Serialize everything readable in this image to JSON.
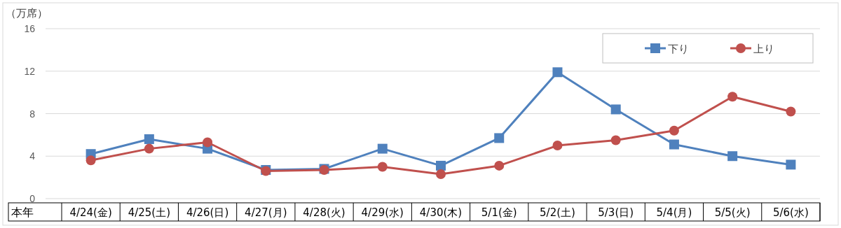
{
  "chart_data": {
    "type": "line",
    "ylabel": "（万席）",
    "categories": [
      "4/24(金)",
      "4/25(土)",
      "4/26(日)",
      "4/27(月)",
      "4/28(火)",
      "4/29(水)",
      "4/30(木)",
      "5/1(金)",
      "5/2(土)",
      "5/3(日)",
      "5/4(月)",
      "5/5(火)",
      "5/6(水)"
    ],
    "series": [
      {
        "name": "下り",
        "color": "#4f81bd",
        "marker": "square",
        "values": [
          4.2,
          5.6,
          4.7,
          2.7,
          2.8,
          4.7,
          3.1,
          5.7,
          11.9,
          8.4,
          5.1,
          4.0,
          3.2
        ]
      },
      {
        "name": "上り",
        "color": "#c0504d",
        "marker": "circle",
        "values": [
          3.6,
          4.7,
          5.3,
          2.6,
          2.7,
          3.0,
          2.3,
          3.1,
          5.0,
          5.5,
          6.4,
          9.6,
          8.2
        ]
      }
    ],
    "ylim": [
      0,
      16
    ],
    "yticks": [
      0,
      4,
      8,
      12,
      16
    ],
    "grid": "y",
    "legend": "top right",
    "line_style": "solid",
    "annotations": [
      "本年"
    ]
  }
}
